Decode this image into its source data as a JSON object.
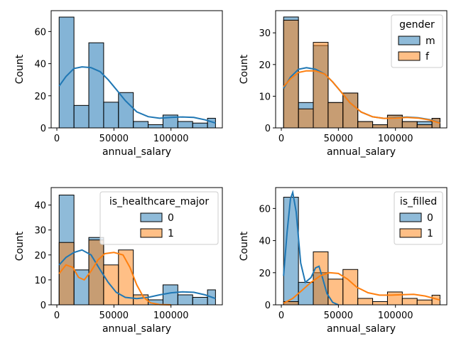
{
  "chart_data": [
    {
      "type": "histogram",
      "xlabel": "annual_salary",
      "ylabel": "Count",
      "xlim": [
        -5000,
        145000
      ],
      "ylim": [
        0,
        73
      ],
      "xticks": [
        0,
        50000,
        100000
      ],
      "xtick_labels": [
        "0",
        "50000",
        "100000"
      ],
      "yticks": [
        0,
        20,
        40,
        60
      ],
      "yticks_labels": [
        "0",
        "20",
        "40",
        "60"
      ],
      "legend": null,
      "bin_edges": [
        2000,
        15000,
        28000,
        41000,
        54000,
        67000,
        80000,
        93000,
        106000,
        119000,
        132000,
        139000
      ],
      "series": [
        {
          "counts": [
            69,
            14,
            53,
            16,
            22,
            4,
            2,
            8,
            4,
            3,
            6
          ],
          "color": "#1f77b4",
          "kde": [
            [
              2000,
              26
            ],
            [
              8000,
              32
            ],
            [
              15000,
              37
            ],
            [
              22000,
              38
            ],
            [
              30000,
              37.5
            ],
            [
              38000,
              35
            ],
            [
              45000,
              30
            ],
            [
              52000,
              24
            ],
            [
              60000,
              17
            ],
            [
              70000,
              10
            ],
            [
              80000,
              7
            ],
            [
              90000,
              6
            ],
            [
              100000,
              6.5
            ],
            [
              110000,
              6.8
            ],
            [
              120000,
              6.5
            ],
            [
              130000,
              5
            ],
            [
              139000,
              3
            ]
          ]
        }
      ]
    },
    {
      "type": "histogram",
      "xlabel": "annual_salary",
      "ylabel": "Count",
      "xlim": [
        -5000,
        145000
      ],
      "ylim": [
        0,
        37
      ],
      "xticks": [
        0,
        50000,
        100000
      ],
      "xtick_labels": [
        "0",
        "50000",
        "100000"
      ],
      "yticks": [
        0,
        10,
        20,
        30
      ],
      "yticks_labels": [
        "0",
        "10",
        "20",
        "30"
      ],
      "legend": {
        "title": "gender",
        "labels": [
          "m",
          "f"
        ],
        "loc": "upper right"
      },
      "bin_edges": [
        2000,
        15000,
        28000,
        41000,
        54000,
        67000,
        80000,
        93000,
        106000,
        119000,
        132000,
        139000
      ],
      "series": [
        {
          "name": "m",
          "counts": [
            35,
            8,
            26,
            8,
            11,
            2,
            1,
            4,
            2,
            2,
            3
          ],
          "color": "#1f77b4",
          "kde": [
            [
              2000,
              12.5
            ],
            [
              8000,
              16
            ],
            [
              15000,
              18.5
            ],
            [
              22000,
              19
            ],
            [
              30000,
              18.5
            ],
            [
              38000,
              17
            ],
            [
              45000,
              14.5
            ],
            [
              52000,
              11.5
            ],
            [
              60000,
              8
            ],
            [
              70000,
              5
            ],
            [
              80000,
              3.5
            ],
            [
              90000,
              3
            ],
            [
              100000,
              3.2
            ],
            [
              110000,
              3.4
            ],
            [
              120000,
              3.2
            ],
            [
              130000,
              2.6
            ],
            [
              139000,
              1.6
            ]
          ]
        },
        {
          "name": "f",
          "counts": [
            34,
            6,
            27,
            8,
            11,
            2,
            1,
            4,
            2,
            1,
            3
          ],
          "color": "#ff7f0e",
          "kde": [
            [
              2000,
              13
            ],
            [
              8000,
              15.5
            ],
            [
              15000,
              17.5
            ],
            [
              22000,
              18
            ],
            [
              30000,
              18
            ],
            [
              38000,
              17
            ],
            [
              45000,
              14.5
            ],
            [
              52000,
              11.5
            ],
            [
              60000,
              8
            ],
            [
              70000,
              5
            ],
            [
              80000,
              3.5
            ],
            [
              90000,
              3
            ],
            [
              100000,
              3.1
            ],
            [
              110000,
              3.3
            ],
            [
              120000,
              3.1
            ],
            [
              130000,
              2.5
            ],
            [
              139000,
              1.5
            ]
          ]
        }
      ]
    },
    {
      "type": "histogram",
      "xlabel": "annual_salary",
      "ylabel": "Count",
      "xlim": [
        -5000,
        145000
      ],
      "ylim": [
        0,
        47
      ],
      "xticks": [
        0,
        50000,
        100000
      ],
      "xtick_labels": [
        "0",
        "50000",
        "100000"
      ],
      "yticks": [
        0,
        10,
        20,
        30,
        40
      ],
      "yticks_labels": [
        "0",
        "10",
        "20",
        "30",
        "40"
      ],
      "legend": {
        "title": "is_healthcare_major",
        "labels": [
          "0",
          "1"
        ],
        "loc": "upper right"
      },
      "bin_edges": [
        2000,
        15000,
        28000,
        41000,
        54000,
        67000,
        80000,
        93000,
        106000,
        119000,
        132000,
        139000
      ],
      "series": [
        {
          "name": "0",
          "counts": [
            44,
            14,
            27,
            0,
            0,
            0,
            2,
            8,
            4,
            3,
            6
          ],
          "color": "#1f77b4",
          "kde": [
            [
              2000,
              16
            ],
            [
              8000,
              19
            ],
            [
              15000,
              21
            ],
            [
              22000,
              22
            ],
            [
              30000,
              20
            ],
            [
              38000,
              14
            ],
            [
              45000,
              9
            ],
            [
              52000,
              5
            ],
            [
              60000,
              3
            ],
            [
              70000,
              2.5
            ],
            [
              80000,
              3
            ],
            [
              90000,
              4
            ],
            [
              100000,
              4.8
            ],
            [
              110000,
              5.2
            ],
            [
              120000,
              5
            ],
            [
              130000,
              4
            ],
            [
              139000,
              2.5
            ]
          ]
        },
        {
          "name": "1",
          "counts": [
            25,
            0,
            26,
            16,
            22,
            4,
            0,
            0,
            0,
            0,
            0
          ],
          "color": "#ff7f0e",
          "kde": [
            [
              2000,
              12.5
            ],
            [
              8000,
              16
            ],
            [
              14000,
              15
            ],
            [
              19000,
              11
            ],
            [
              24000,
              10
            ],
            [
              30000,
              13.5
            ],
            [
              36000,
              18
            ],
            [
              42000,
              20.5
            ],
            [
              50000,
              21
            ],
            [
              58000,
              20
            ],
            [
              64000,
              15
            ],
            [
              70000,
              8
            ],
            [
              76000,
              3
            ],
            [
              82000,
              0.8
            ],
            [
              90000,
              0.1
            ],
            [
              100000,
              0
            ]
          ]
        }
      ]
    },
    {
      "type": "histogram",
      "xlabel": "annual_salary",
      "ylabel": "Count",
      "xlim": [
        -5000,
        145000
      ],
      "ylim": [
        0,
        73
      ],
      "xticks": [
        0,
        50000,
        100000
      ],
      "xtick_labels": [
        "0",
        "50000",
        "100000"
      ],
      "yticks": [
        0,
        20,
        40,
        60
      ],
      "yticks_labels": [
        "0",
        "20",
        "40",
        "60"
      ],
      "legend": {
        "title": "is_filled",
        "labels": [
          "0",
          "1"
        ],
        "loc": "upper right"
      },
      "bin_edges": [
        2000,
        15000,
        28000,
        41000,
        54000,
        67000,
        80000,
        93000,
        106000,
        119000,
        132000,
        139000
      ],
      "series": [
        {
          "name": "0",
          "counts": [
            67,
            14,
            20,
            0,
            0,
            0,
            0,
            0,
            0,
            0,
            0
          ],
          "color": "#1f77b4",
          "kde": [
            [
              2000,
              18
            ],
            [
              5000,
              45
            ],
            [
              8000,
              66
            ],
            [
              10000,
              70
            ],
            [
              13000,
              58
            ],
            [
              17000,
              26
            ],
            [
              21000,
              14
            ],
            [
              26000,
              17
            ],
            [
              30000,
              23
            ],
            [
              33000,
              24
            ],
            [
              36000,
              17
            ],
            [
              40000,
              7
            ],
            [
              45000,
              1.5
            ],
            [
              50000,
              0
            ]
          ]
        },
        {
          "name": "1",
          "counts": [
            2,
            0,
            33,
            16,
            22,
            4,
            2,
            8,
            4,
            3,
            6
          ],
          "color": "#ff7f0e",
          "kde": [
            [
              2000,
              1
            ],
            [
              10000,
              4
            ],
            [
              18000,
              9
            ],
            [
              26000,
              14
            ],
            [
              34000,
              18
            ],
            [
              42000,
              20
            ],
            [
              50000,
              19.5
            ],
            [
              58000,
              16
            ],
            [
              66000,
              11
            ],
            [
              76000,
              7.5
            ],
            [
              86000,
              6
            ],
            [
              96000,
              6
            ],
            [
              106000,
              6.3
            ],
            [
              116000,
              6.5
            ],
            [
              126000,
              5.5
            ],
            [
              139000,
              3
            ]
          ]
        }
      ]
    }
  ]
}
